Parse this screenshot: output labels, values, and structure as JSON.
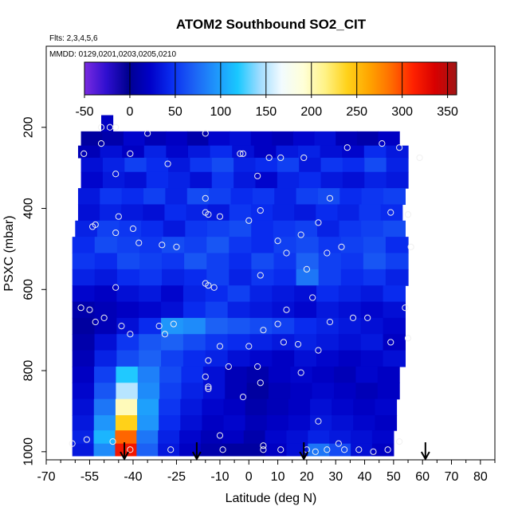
{
  "chart_data": {
    "type": "heatmap",
    "title": "ATOM2 Southbound SO2_CIT",
    "notes": [
      "Flts: 2,3,4,5,6",
      "MMDD: 0129,0201,0203,0205,0210"
    ],
    "xlabel": "Latitude (deg N)",
    "ylabel": "PSXC (mbar)",
    "xlim": [
      -70,
      85
    ],
    "ylim": [
      1020,
      0
    ],
    "x_ticks": [
      -70,
      -55,
      -40,
      -25,
      -10,
      0,
      10,
      20,
      30,
      40,
      50,
      60,
      70,
      80
    ],
    "x_minor_ticks": [
      -65,
      -60,
      -50,
      -45,
      -35,
      -30,
      -20,
      -15,
      -5,
      5,
      15,
      25,
      35,
      45,
      55,
      65,
      75,
      85
    ],
    "y_ticks": [
      200,
      400,
      600,
      800,
      1000
    ],
    "colorbar": {
      "ticks": [
        -50,
        0,
        50,
        100,
        150,
        200,
        250,
        300,
        350
      ],
      "range": [
        -50,
        360
      ],
      "colors": [
        "#7a2be0",
        "#2f0fd0",
        "#000090",
        "#0000c8",
        "#0a2ef0",
        "#1c62f5",
        "#1f95fb",
        "#19c8ff",
        "#9fdcff",
        "#f2fbff",
        "#ffffd8",
        "#fff285",
        "#ffd21a",
        "#ffa500",
        "#ff6d00",
        "#ff2200",
        "#d80000",
        "#a01515"
      ]
    },
    "flight_arrows_lat": [
      -43,
      -18,
      19,
      61
    ],
    "pressure_bins": [
      {
        "p": 190,
        "lat": [
          -51,
          -47
        ],
        "v": [
          20
        ]
      },
      {
        "p": 230,
        "lat": [
          -58,
          52
        ],
        "v": [
          5,
          10,
          25,
          15,
          20,
          10,
          25,
          30,
          20,
          15,
          25,
          30,
          15,
          10,
          20
        ]
      },
      {
        "p": 260,
        "lat": [
          -59,
          55
        ],
        "v": [
          15,
          30,
          20,
          40,
          25,
          35,
          45,
          30,
          20,
          35,
          40,
          30,
          25,
          45,
          35
        ]
      },
      {
        "p": 290,
        "lat": [
          -58,
          55
        ],
        "v": [
          30,
          40,
          55,
          45,
          35,
          50,
          60,
          40,
          45,
          55,
          35,
          50,
          45,
          60,
          40
        ]
      },
      {
        "p": 330,
        "lat": [
          -58,
          55
        ],
        "v": [
          25,
          35,
          30,
          45,
          40,
          30,
          50,
          35,
          25,
          40,
          45,
          35,
          30,
          40,
          35
        ]
      },
      {
        "p": 370,
        "lat": [
          -59,
          54
        ],
        "v": [
          35,
          50,
          45,
          55,
          40,
          60,
          55,
          45,
          50,
          40,
          55,
          60,
          45,
          50,
          55
        ]
      },
      {
        "p": 410,
        "lat": [
          -59,
          53
        ],
        "v": [
          30,
          40,
          35,
          30,
          45,
          40,
          35,
          50,
          45,
          40,
          35,
          45,
          40,
          50,
          45
        ]
      },
      {
        "p": 450,
        "lat": [
          -60,
          54
        ],
        "v": [
          40,
          55,
          50,
          45,
          35,
          50,
          55,
          60,
          45,
          50,
          55,
          40,
          50,
          55,
          60
        ]
      },
      {
        "p": 490,
        "lat": [
          -61,
          55
        ],
        "v": [
          45,
          60,
          55,
          50,
          60,
          55,
          65,
          50,
          45,
          55,
          60,
          50,
          55,
          60,
          45
        ]
      },
      {
        "p": 530,
        "lat": [
          -61,
          55
        ],
        "v": [
          50,
          45,
          60,
          55,
          50,
          65,
          55,
          45,
          60,
          50,
          70,
          55,
          50,
          65,
          55
        ]
      },
      {
        "p": 570,
        "lat": [
          -61,
          55
        ],
        "v": [
          40,
          35,
          45,
          50,
          40,
          45,
          55,
          40,
          50,
          45,
          80,
          55,
          45,
          50,
          40
        ]
      },
      {
        "p": 610,
        "lat": [
          -61,
          54
        ],
        "v": [
          25,
          20,
          30,
          35,
          25,
          40,
          45,
          55,
          40,
          35,
          30,
          45,
          40,
          35,
          45
        ]
      },
      {
        "p": 650,
        "lat": [
          -61,
          54
        ],
        "v": [
          10,
          15,
          20,
          25,
          30,
          45,
          55,
          40,
          35,
          30,
          25,
          35,
          30,
          25,
          30
        ]
      },
      {
        "p": 690,
        "lat": [
          -61,
          54
        ],
        "v": [
          5,
          15,
          30,
          45,
          95,
          90,
          70,
          65,
          60,
          55,
          45,
          40,
          35,
          30,
          25
        ]
      },
      {
        "p": 730,
        "lat": [
          -61,
          54
        ],
        "v": [
          10,
          30,
          50,
          65,
          70,
          60,
          50,
          45,
          40,
          35,
          40,
          35,
          30,
          35,
          20
        ]
      },
      {
        "p": 770,
        "lat": [
          -61,
          54
        ],
        "v": [
          15,
          40,
          60,
          70,
          55,
          45,
          40,
          30,
          25,
          20,
          30,
          25,
          20,
          25,
          30
        ]
      },
      {
        "p": 810,
        "lat": [
          -61,
          52
        ],
        "v": [
          20,
          55,
          120,
          85,
          60,
          45,
          30,
          15,
          10,
          20,
          25,
          20,
          15,
          25,
          20
        ]
      },
      {
        "p": 850,
        "lat": [
          -61,
          52
        ],
        "v": [
          25,
          65,
          150,
          90,
          55,
          40,
          30,
          15,
          5,
          15,
          20,
          25,
          20,
          15,
          20
        ]
      },
      {
        "p": 890,
        "lat": [
          -61,
          51
        ],
        "v": [
          30,
          80,
          200,
          100,
          50,
          35,
          25,
          20,
          10,
          15,
          20,
          30,
          25,
          20,
          25
        ]
      },
      {
        "p": 930,
        "lat": [
          -61,
          51
        ],
        "v": [
          35,
          95,
          240,
          95,
          45,
          30,
          20,
          25,
          15,
          20,
          25,
          35,
          30,
          25,
          20
        ]
      },
      {
        "p": 965,
        "lat": [
          -61,
          50
        ],
        "v": [
          40,
          110,
          290,
          80,
          40,
          25,
          15,
          20,
          10,
          25,
          30,
          40,
          35,
          30,
          25
        ]
      },
      {
        "p": 995,
        "lat": [
          -61,
          50
        ],
        "v": [
          35,
          90,
          320,
          70,
          35,
          20,
          10,
          5,
          5,
          20,
          30,
          80,
          60,
          30,
          20
        ]
      }
    ],
    "points": [
      {
        "lat": -51,
        "p": 200
      },
      {
        "lat": -48,
        "p": 200
      },
      {
        "lat": -46,
        "p": 200
      },
      {
        "lat": -35,
        "p": 215
      },
      {
        "lat": -15,
        "p": 215
      },
      {
        "lat": -51,
        "p": 240
      },
      {
        "lat": -57,
        "p": 265
      },
      {
        "lat": -41,
        "p": 265
      },
      {
        "lat": -28,
        "p": 290
      },
      {
        "lat": -3,
        "p": 265
      },
      {
        "lat": -2,
        "p": 265
      },
      {
        "lat": 7,
        "p": 275
      },
      {
        "lat": 11,
        "p": 275
      },
      {
        "lat": 19,
        "p": 275
      },
      {
        "lat": 34,
        "p": 250
      },
      {
        "lat": 46,
        "p": 240
      },
      {
        "lat": 52,
        "p": 250
      },
      {
        "lat": 59,
        "p": 275
      },
      {
        "lat": -46,
        "p": 315
      },
      {
        "lat": 3,
        "p": 320
      },
      {
        "lat": -15,
        "p": 375
      },
      {
        "lat": 28,
        "p": 375
      },
      {
        "lat": -15,
        "p": 410
      },
      {
        "lat": -14,
        "p": 415
      },
      {
        "lat": -10,
        "p": 420
      },
      {
        "lat": -45,
        "p": 420
      },
      {
        "lat": -40,
        "p": 450
      },
      {
        "lat": 4,
        "p": 405
      },
      {
        "lat": 0,
        "p": 430
      },
      {
        "lat": 24,
        "p": 435
      },
      {
        "lat": 49,
        "p": 410
      },
      {
        "lat": 55,
        "p": 415
      },
      {
        "lat": -54,
        "p": 445
      },
      {
        "lat": -53,
        "p": 440
      },
      {
        "lat": -46,
        "p": 460
      },
      {
        "lat": 18,
        "p": 465
      },
      {
        "lat": 10,
        "p": 480
      },
      {
        "lat": -38,
        "p": 485
      },
      {
        "lat": -30,
        "p": 490
      },
      {
        "lat": -25,
        "p": 495
      },
      {
        "lat": 32,
        "p": 495
      },
      {
        "lat": 56,
        "p": 495
      },
      {
        "lat": 13,
        "p": 510
      },
      {
        "lat": 27,
        "p": 510
      },
      {
        "lat": 20,
        "p": 550
      },
      {
        "lat": 4,
        "p": 565
      },
      {
        "lat": -14,
        "p": 590
      },
      {
        "lat": -15,
        "p": 585
      },
      {
        "lat": -12,
        "p": 595
      },
      {
        "lat": -46,
        "p": 595
      },
      {
        "lat": 22,
        "p": 620
      },
      {
        "lat": -58,
        "p": 645
      },
      {
        "lat": -55,
        "p": 650
      },
      {
        "lat": 13,
        "p": 650
      },
      {
        "lat": 54,
        "p": 645
      },
      {
        "lat": -53,
        "p": 680
      },
      {
        "lat": -44,
        "p": 690
      },
      {
        "lat": -50,
        "p": 670
      },
      {
        "lat": -31,
        "p": 690
      },
      {
        "lat": -26,
        "p": 685
      },
      {
        "lat": 10,
        "p": 685
      },
      {
        "lat": 28,
        "p": 680
      },
      {
        "lat": 36,
        "p": 670
      },
      {
        "lat": 41,
        "p": 670
      },
      {
        "lat": 5,
        "p": 700
      },
      {
        "lat": -41,
        "p": 710
      },
      {
        "lat": -29,
        "p": 710
      },
      {
        "lat": 12,
        "p": 730
      },
      {
        "lat": -10,
        "p": 740
      },
      {
        "lat": 49,
        "p": 730
      },
      {
        "lat": 55,
        "p": 720
      },
      {
        "lat": 24,
        "p": 750
      },
      {
        "lat": -14,
        "p": 775
      },
      {
        "lat": -7,
        "p": 790
      },
      {
        "lat": 3,
        "p": 790
      },
      {
        "lat": 0,
        "p": 740
      },
      {
        "lat": 17,
        "p": 735
      },
      {
        "lat": -15,
        "p": 815
      },
      {
        "lat": -14,
        "p": 845
      },
      {
        "lat": 4,
        "p": 830
      },
      {
        "lat": 18,
        "p": 805
      },
      {
        "lat": -14,
        "p": 840
      },
      {
        "lat": -2,
        "p": 865
      },
      {
        "lat": 24,
        "p": 925
      },
      {
        "lat": -56,
        "p": 970
      },
      {
        "lat": -61,
        "p": 980
      },
      {
        "lat": -47,
        "p": 975
      },
      {
        "lat": -41,
        "p": 995
      },
      {
        "lat": -27,
        "p": 995
      },
      {
        "lat": -10,
        "p": 960
      },
      {
        "lat": -9,
        "p": 995
      },
      {
        "lat": 5,
        "p": 985
      },
      {
        "lat": 5,
        "p": 995
      },
      {
        "lat": 11,
        "p": 995
      },
      {
        "lat": 20,
        "p": 995
      },
      {
        "lat": 23,
        "p": 1000
      },
      {
        "lat": 27,
        "p": 995
      },
      {
        "lat": 31,
        "p": 980
      },
      {
        "lat": 33,
        "p": 995
      },
      {
        "lat": 38,
        "p": 995
      },
      {
        "lat": 43,
        "p": 1000
      },
      {
        "lat": 48,
        "p": 995
      },
      {
        "lat": 52,
        "p": 975
      }
    ]
  }
}
